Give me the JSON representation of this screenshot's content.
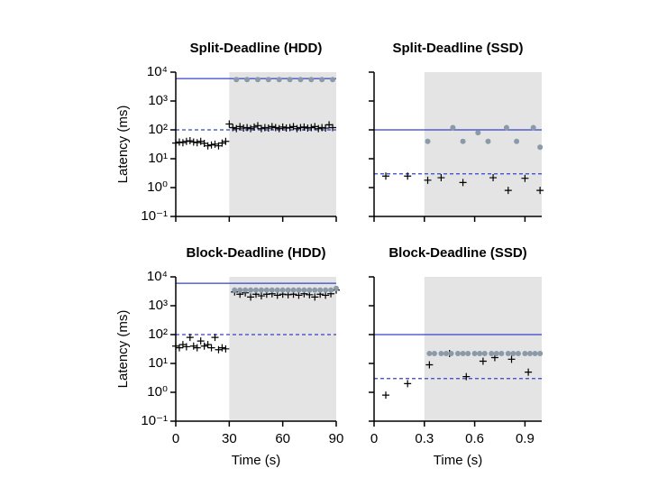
{
  "chart_data": [
    {
      "type": "scatter",
      "title": "Split-Deadline (HDD)",
      "ylabel": "Latency (ms)",
      "log_y": true,
      "xlim": [
        0,
        90
      ],
      "xticks": [
        0,
        30,
        60,
        90
      ],
      "xtick_labels": false,
      "ylim": [
        0.1,
        10000
      ],
      "yticks": [
        {
          "value": 0.1,
          "label": "10⁻¹"
        },
        {
          "value": 1,
          "label": "10⁰"
        },
        {
          "value": 10,
          "label": "10¹"
        },
        {
          "value": 100,
          "label": "10²"
        },
        {
          "value": 1000,
          "label": "10³"
        },
        {
          "value": 10000,
          "label": "10⁴"
        }
      ],
      "ytick_labels": true,
      "shaded": [
        30,
        90
      ],
      "lines": [
        {
          "value": 6000,
          "style": "solid",
          "color": "#3344cc"
        },
        {
          "value": 100,
          "style": "dashed",
          "color": "#3344cc"
        }
      ],
      "series": [
        {
          "marker": "plus",
          "color": "#000000",
          "x": [
            0,
            2,
            4,
            6,
            8,
            10,
            12,
            14,
            16,
            18,
            20,
            22,
            24,
            26,
            28,
            30,
            32,
            34,
            36,
            38,
            40,
            42,
            44,
            46,
            48,
            50,
            52,
            54,
            56,
            58,
            60,
            62,
            64,
            66,
            68,
            70,
            72,
            74,
            76,
            78,
            80,
            82,
            84,
            86,
            88
          ],
          "values": [
            35,
            38,
            36,
            40,
            42,
            38,
            36,
            40,
            34,
            28,
            30,
            32,
            28,
            35,
            40,
            160,
            120,
            110,
            130,
            115,
            120,
            110,
            125,
            140,
            110,
            120,
            115,
            130,
            120,
            110,
            125,
            115,
            120,
            130,
            110,
            120,
            125,
            115,
            120,
            130,
            110,
            120,
            115,
            150,
            120
          ]
        },
        {
          "marker": "circle",
          "color": "#8a9aa8",
          "x": [
            34,
            40,
            46,
            52,
            58,
            64,
            70,
            76,
            82,
            88
          ],
          "values": [
            5500,
            5500,
            5500,
            5500,
            5500,
            5500,
            5500,
            5500,
            5500,
            5500
          ]
        }
      ]
    },
    {
      "type": "scatter",
      "title": "Split-Deadline (SSD)",
      "log_y": true,
      "xlim": [
        0,
        1
      ],
      "xticks": [
        0,
        0.3,
        0.6,
        0.9
      ],
      "xtick_labels": false,
      "ylim": [
        0.1,
        10000
      ],
      "yticks": [
        0.1,
        1,
        10,
        100,
        1000,
        10000
      ],
      "ytick_labels": false,
      "shaded": [
        0.3,
        1
      ],
      "lines": [
        {
          "value": 100,
          "style": "solid",
          "color": "#3344cc"
        },
        {
          "value": 3,
          "style": "dashed",
          "color": "#3344cc"
        }
      ],
      "series": [
        {
          "marker": "plus",
          "color": "#000000",
          "x": [
            0.07,
            0.2,
            0.32,
            0.4,
            0.53,
            0.71,
            0.8,
            0.9,
            0.99
          ],
          "values": [
            2.5,
            2.5,
            1.8,
            2.2,
            1.5,
            2.2,
            0.8,
            2.1,
            0.8
          ]
        },
        {
          "marker": "circle",
          "color": "#8a9aa8",
          "x": [
            0.32,
            0.47,
            0.53,
            0.62,
            0.68,
            0.79,
            0.85,
            0.95,
            0.99
          ],
          "values": [
            40,
            120,
            40,
            80,
            40,
            120,
            40,
            120,
            25
          ]
        }
      ]
    },
    {
      "type": "scatter",
      "title": "Block-Deadline (HDD)",
      "ylabel": "Latency (ms)",
      "xlabel": "Time (s)",
      "log_y": true,
      "xlim": [
        0,
        90
      ],
      "xticks": [
        0,
        30,
        60,
        90
      ],
      "xtick_labels": true,
      "ylim": [
        0.1,
        10000
      ],
      "yticks": [
        {
          "value": 0.1,
          "label": "10⁻¹"
        },
        {
          "value": 1,
          "label": "10⁰"
        },
        {
          "value": 10,
          "label": "10¹"
        },
        {
          "value": 100,
          "label": "10²"
        },
        {
          "value": 1000,
          "label": "10³"
        },
        {
          "value": 10000,
          "label": "10⁴"
        }
      ],
      "ytick_labels": true,
      "shaded": [
        30,
        90
      ],
      "lines": [
        {
          "value": 6000,
          "style": "solid",
          "color": "#3344cc"
        },
        {
          "value": 100,
          "style": "dashed",
          "color": "#3344cc"
        }
      ],
      "series": [
        {
          "marker": "plus",
          "color": "#000000",
          "x": [
            0,
            2,
            4,
            6,
            8,
            10,
            12,
            14,
            16,
            18,
            20,
            22,
            24,
            26,
            28,
            33,
            36,
            39,
            42,
            45,
            48,
            51,
            54,
            57,
            60,
            63,
            66,
            69,
            72,
            75,
            78,
            81,
            84,
            87,
            90
          ],
          "values": [
            40,
            35,
            45,
            38,
            80,
            40,
            35,
            60,
            40,
            45,
            35,
            80,
            30,
            35,
            32,
            3000,
            2500,
            2800,
            2000,
            2500,
            2200,
            2500,
            2600,
            2300,
            2500,
            2400,
            2500,
            2300,
            2600,
            2400,
            2000,
            2500,
            2300,
            2600,
            3500
          ]
        },
        {
          "marker": "circle",
          "color": "#8a9aa8",
          "x": [
            33,
            36,
            39,
            42,
            45,
            48,
            51,
            54,
            57,
            60,
            63,
            66,
            69,
            72,
            75,
            78,
            81,
            84,
            87,
            90
          ],
          "values": [
            3500,
            3500,
            3500,
            3500,
            3500,
            3500,
            3500,
            3500,
            3500,
            3500,
            3500,
            3500,
            3500,
            3500,
            3500,
            3500,
            3500,
            3500,
            3500,
            4000
          ]
        }
      ]
    },
    {
      "type": "scatter",
      "title": "Block-Deadline (SSD)",
      "xlabel": "Time (s)",
      "log_y": true,
      "xlim": [
        0,
        1
      ],
      "xticks": [
        0,
        0.3,
        0.6,
        0.9
      ],
      "xtick_labels": true,
      "ylim": [
        0.1,
        10000
      ],
      "yticks": [
        0.1,
        1,
        10,
        100,
        1000,
        10000
      ],
      "ytick_labels": false,
      "shaded": [
        0.3,
        1
      ],
      "lines": [
        {
          "value": 100,
          "style": "solid",
          "color": "#3344cc"
        },
        {
          "value": 3,
          "style": "dashed",
          "color": "#3344cc"
        }
      ],
      "series": [
        {
          "marker": "plus",
          "color": "#000000",
          "x": [
            0.07,
            0.2,
            0.33,
            0.45,
            0.55,
            0.65,
            0.72,
            0.82,
            0.92
          ],
          "values": [
            0.8,
            2,
            9,
            22,
            3.5,
            12,
            16,
            14,
            5
          ]
        },
        {
          "marker": "circle",
          "color": "#8a9aa8",
          "x": [
            0.33,
            0.36,
            0.4,
            0.43,
            0.46,
            0.5,
            0.53,
            0.56,
            0.6,
            0.63,
            0.66,
            0.7,
            0.73,
            0.76,
            0.8,
            0.83,
            0.86,
            0.9,
            0.93,
            0.96,
            0.99
          ],
          "values": [
            22,
            22,
            22,
            22,
            22,
            22,
            22,
            22,
            22,
            22,
            22,
            22,
            22,
            22,
            22,
            22,
            22,
            22,
            22,
            22,
            22
          ]
        }
      ]
    }
  ]
}
